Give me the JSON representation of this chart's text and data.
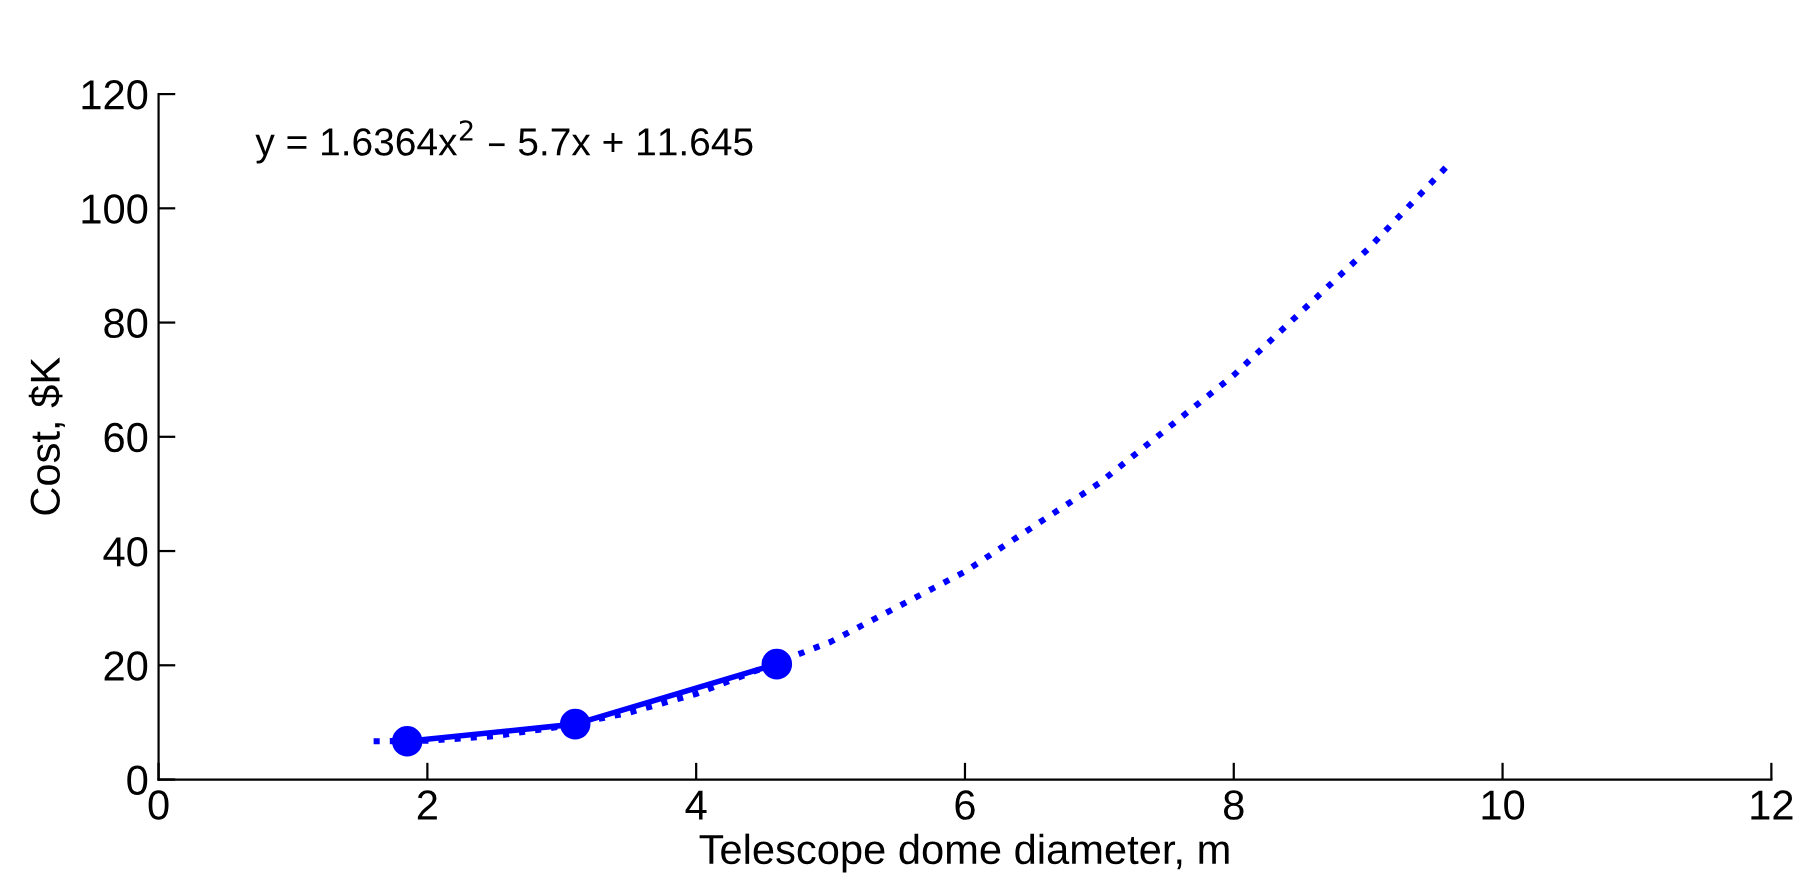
{
  "chart_data": {
    "type": "line",
    "xlabel": "Telescope dome diameter, m",
    "ylabel": "Cost, $K",
    "annotations": [
      "y = 1.6364x$^{2}$ – 5.7x + 11.645"
    ],
    "xlim": [
      0,
      12
    ],
    "xticks": [
      0,
      2,
      4,
      6,
      8,
      10,
      12
    ],
    "ylim": [
      0,
      120
    ],
    "yticks": [
      0,
      20,
      40,
      60,
      80,
      100,
      120
    ],
    "grid": false,
    "legend": false,
    "series": [
      {
        "color": "#0000ff",
        "marker": "none",
        "line_style": "dotted",
        "x": [
          1.6,
          2,
          2.5,
          3,
          3.5,
          4,
          5,
          6,
          7,
          8,
          9,
          9.6
        ],
        "values": [
          6.7,
          6.8,
          7.6,
          9.3,
          11.7,
          15.0,
          24.1,
          36.4,
          51.9,
          70.8,
          92.9,
          107.7
        ]
      },
      {
        "color": "#0000ff",
        "marker": "circle",
        "line_style": "solid",
        "x": [
          1.85,
          3.1,
          4.6
        ],
        "values": [
          6.7,
          9.7,
          20.2
        ]
      }
    ]
  }
}
